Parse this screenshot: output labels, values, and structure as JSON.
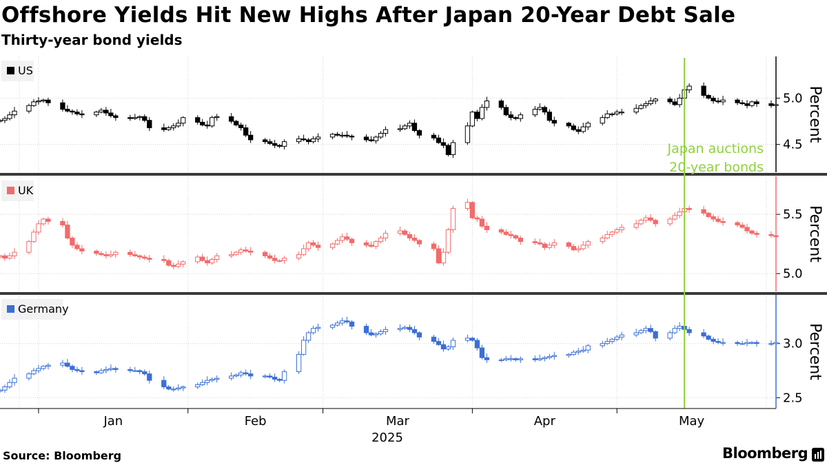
{
  "header": {
    "title": "Offshore Yields Hit New Highs After Japan 20-Year Debt Sale",
    "subtitle": "Thirty-year bond yields"
  },
  "footer": {
    "source": "Source: Bloomberg",
    "brand": "Bloomberg"
  },
  "chart_data": {
    "type": "candlestick",
    "title": "Offshore Yields Hit New Highs After Japan 20-Year Debt Sale",
    "subtitle": "Thirty-year bond yields",
    "x_axis": {
      "months": [
        "Jan",
        "Feb",
        "Mar",
        "Apr",
        "May"
      ],
      "year_label": "2025",
      "start": "2024-12-24",
      "end": "2025-06-03"
    },
    "event": {
      "date": "2025-05-15",
      "label_lines": [
        "Japan auctions",
        "20-year bonds"
      ],
      "color": "#8fd13d"
    },
    "grid": true,
    "panels": [
      {
        "name": "US",
        "color": "#000000",
        "ylabel": "Percent",
        "ylim": [
          4.2,
          5.45
        ],
        "ticks": [
          4.5,
          5.0
        ],
        "tick_labels": [
          "4.5",
          "5.0"
        ],
        "closes": [
          4.76,
          4.78,
          4.82,
          4.86,
          4.92,
          4.96,
          4.97,
          4.98,
          4.95,
          4.88,
          4.86,
          4.85,
          4.83,
          4.82,
          4.85,
          4.87,
          4.84,
          4.81,
          4.79,
          4.78,
          4.79,
          4.8,
          4.76,
          4.68,
          4.66,
          4.68,
          4.7,
          4.73,
          4.79,
          4.74,
          4.71,
          4.7,
          4.79,
          4.8,
          4.75,
          4.71,
          4.68,
          4.6,
          4.55,
          4.53,
          4.51,
          4.49,
          4.48,
          4.53,
          4.56,
          4.55,
          4.53,
          4.56,
          4.58,
          4.61,
          4.6,
          4.6,
          4.59,
          4.58,
          4.55,
          4.54,
          4.58,
          4.62,
          4.66,
          4.67,
          4.7,
          4.73,
          4.65,
          4.6,
          4.57,
          4.52,
          4.49,
          4.39,
          4.52,
          4.7,
          4.85,
          4.78,
          4.9,
          4.97,
          4.9,
          4.82,
          4.79,
          4.78,
          4.82,
          4.88,
          4.9,
          4.85,
          4.76,
          4.73,
          4.7,
          4.66,
          4.64,
          4.69,
          4.73,
          4.79,
          4.83,
          4.83,
          4.85,
          4.85,
          4.89,
          4.92,
          4.94,
          4.97,
          4.99,
          4.96,
          4.93,
          5.0,
          5.09,
          5.13,
          5.03,
          5.0,
          4.97,
          4.96,
          4.98,
          4.95,
          4.94,
          4.92,
          4.96,
          4.94,
          4.92,
          4.93,
          4.92,
          4.91
        ]
      },
      {
        "name": "UK",
        "color": "#f26b6b",
        "ylabel": "Percent",
        "ylim": [
          4.85,
          5.82
        ],
        "ticks": [
          5.0,
          5.5
        ],
        "tick_labels": [
          "5.0",
          "5.5"
        ],
        "closes": [
          5.15,
          5.13,
          5.15,
          5.18,
          5.27,
          5.35,
          5.42,
          5.46,
          5.44,
          5.41,
          5.3,
          5.24,
          5.21,
          5.19,
          5.17,
          5.16,
          5.15,
          5.16,
          5.18,
          5.16,
          5.15,
          5.14,
          5.13,
          5.12,
          5.11,
          5.07,
          5.06,
          5.08,
          5.1,
          5.14,
          5.11,
          5.09,
          5.12,
          5.15,
          5.16,
          5.18,
          5.2,
          5.19,
          5.18,
          5.15,
          5.13,
          5.11,
          5.11,
          5.13,
          5.16,
          5.21,
          5.26,
          5.24,
          5.22,
          5.25,
          5.28,
          5.31,
          5.29,
          5.26,
          5.24,
          5.23,
          5.27,
          5.3,
          5.34,
          5.36,
          5.33,
          5.3,
          5.28,
          5.25,
          5.21,
          5.09,
          5.18,
          5.37,
          5.55,
          5.6,
          5.47,
          5.46,
          5.4,
          5.37,
          5.35,
          5.33,
          5.32,
          5.3,
          5.27,
          5.26,
          5.25,
          5.22,
          5.24,
          5.26,
          5.23,
          5.2,
          5.21,
          5.24,
          5.27,
          5.3,
          5.33,
          5.35,
          5.37,
          5.39,
          5.42,
          5.45,
          5.47,
          5.45,
          5.42,
          5.46,
          5.49,
          5.52,
          5.55,
          5.54,
          5.51,
          5.48,
          5.46,
          5.44,
          5.43,
          5.41,
          5.39,
          5.36,
          5.34,
          5.33,
          5.32,
          5.31,
          5.3,
          5.28
        ]
      },
      {
        "name": "Germany",
        "color": "#3b6fd4",
        "ylabel": "Percent",
        "ylim": [
          2.4,
          3.45
        ],
        "ticks": [
          2.5,
          3.0
        ],
        "tick_labels": [
          "2.5",
          "3.0"
        ],
        "closes": [
          2.57,
          2.6,
          2.64,
          2.68,
          2.72,
          2.75,
          2.77,
          2.79,
          2.8,
          2.82,
          2.79,
          2.76,
          2.75,
          2.74,
          2.73,
          2.75,
          2.76,
          2.77,
          2.76,
          2.75,
          2.75,
          2.74,
          2.72,
          2.66,
          2.6,
          2.58,
          2.58,
          2.59,
          2.6,
          2.62,
          2.64,
          2.66,
          2.67,
          2.68,
          2.7,
          2.71,
          2.73,
          2.72,
          2.7,
          2.7,
          2.69,
          2.67,
          2.66,
          2.74,
          2.9,
          3.03,
          3.1,
          3.14,
          3.15,
          3.17,
          3.19,
          3.21,
          3.2,
          3.16,
          3.1,
          3.08,
          3.09,
          3.11,
          3.13,
          3.14,
          3.15,
          3.13,
          3.1,
          3.06,
          3.02,
          2.99,
          2.95,
          2.97,
          3.03,
          3.05,
          3.03,
          2.96,
          2.87,
          2.85,
          2.85,
          2.86,
          2.86,
          2.85,
          2.86,
          2.85,
          2.86,
          2.87,
          2.88,
          2.89,
          2.9,
          2.92,
          2.93,
          2.94,
          2.98,
          3.0,
          3.02,
          3.04,
          3.06,
          3.08,
          3.1,
          3.12,
          3.14,
          3.11,
          3.05,
          3.1,
          3.14,
          3.16,
          3.13,
          3.1,
          3.07,
          3.04,
          3.02,
          3.01,
          3.01,
          3.0,
          3.0,
          3.01,
          3.01,
          3.0,
          3.0,
          3.01,
          3.0,
          3.0
        ]
      }
    ]
  }
}
